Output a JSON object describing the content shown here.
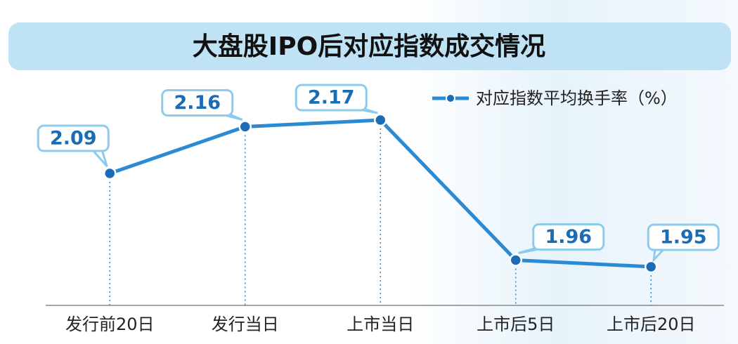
{
  "chart_data": {
    "type": "line",
    "title": "大盘股IPO后对应指数成交情况",
    "categories": [
      "发行前20日",
      "发行当日",
      "上市当日",
      "上市后5日",
      "上市后20日"
    ],
    "series": [
      {
        "name": "对应指数平均换手率（%）",
        "color": "#2a8ad4",
        "values": [
          2.09,
          2.16,
          2.17,
          1.96,
          1.95
        ]
      }
    ]
  }
}
